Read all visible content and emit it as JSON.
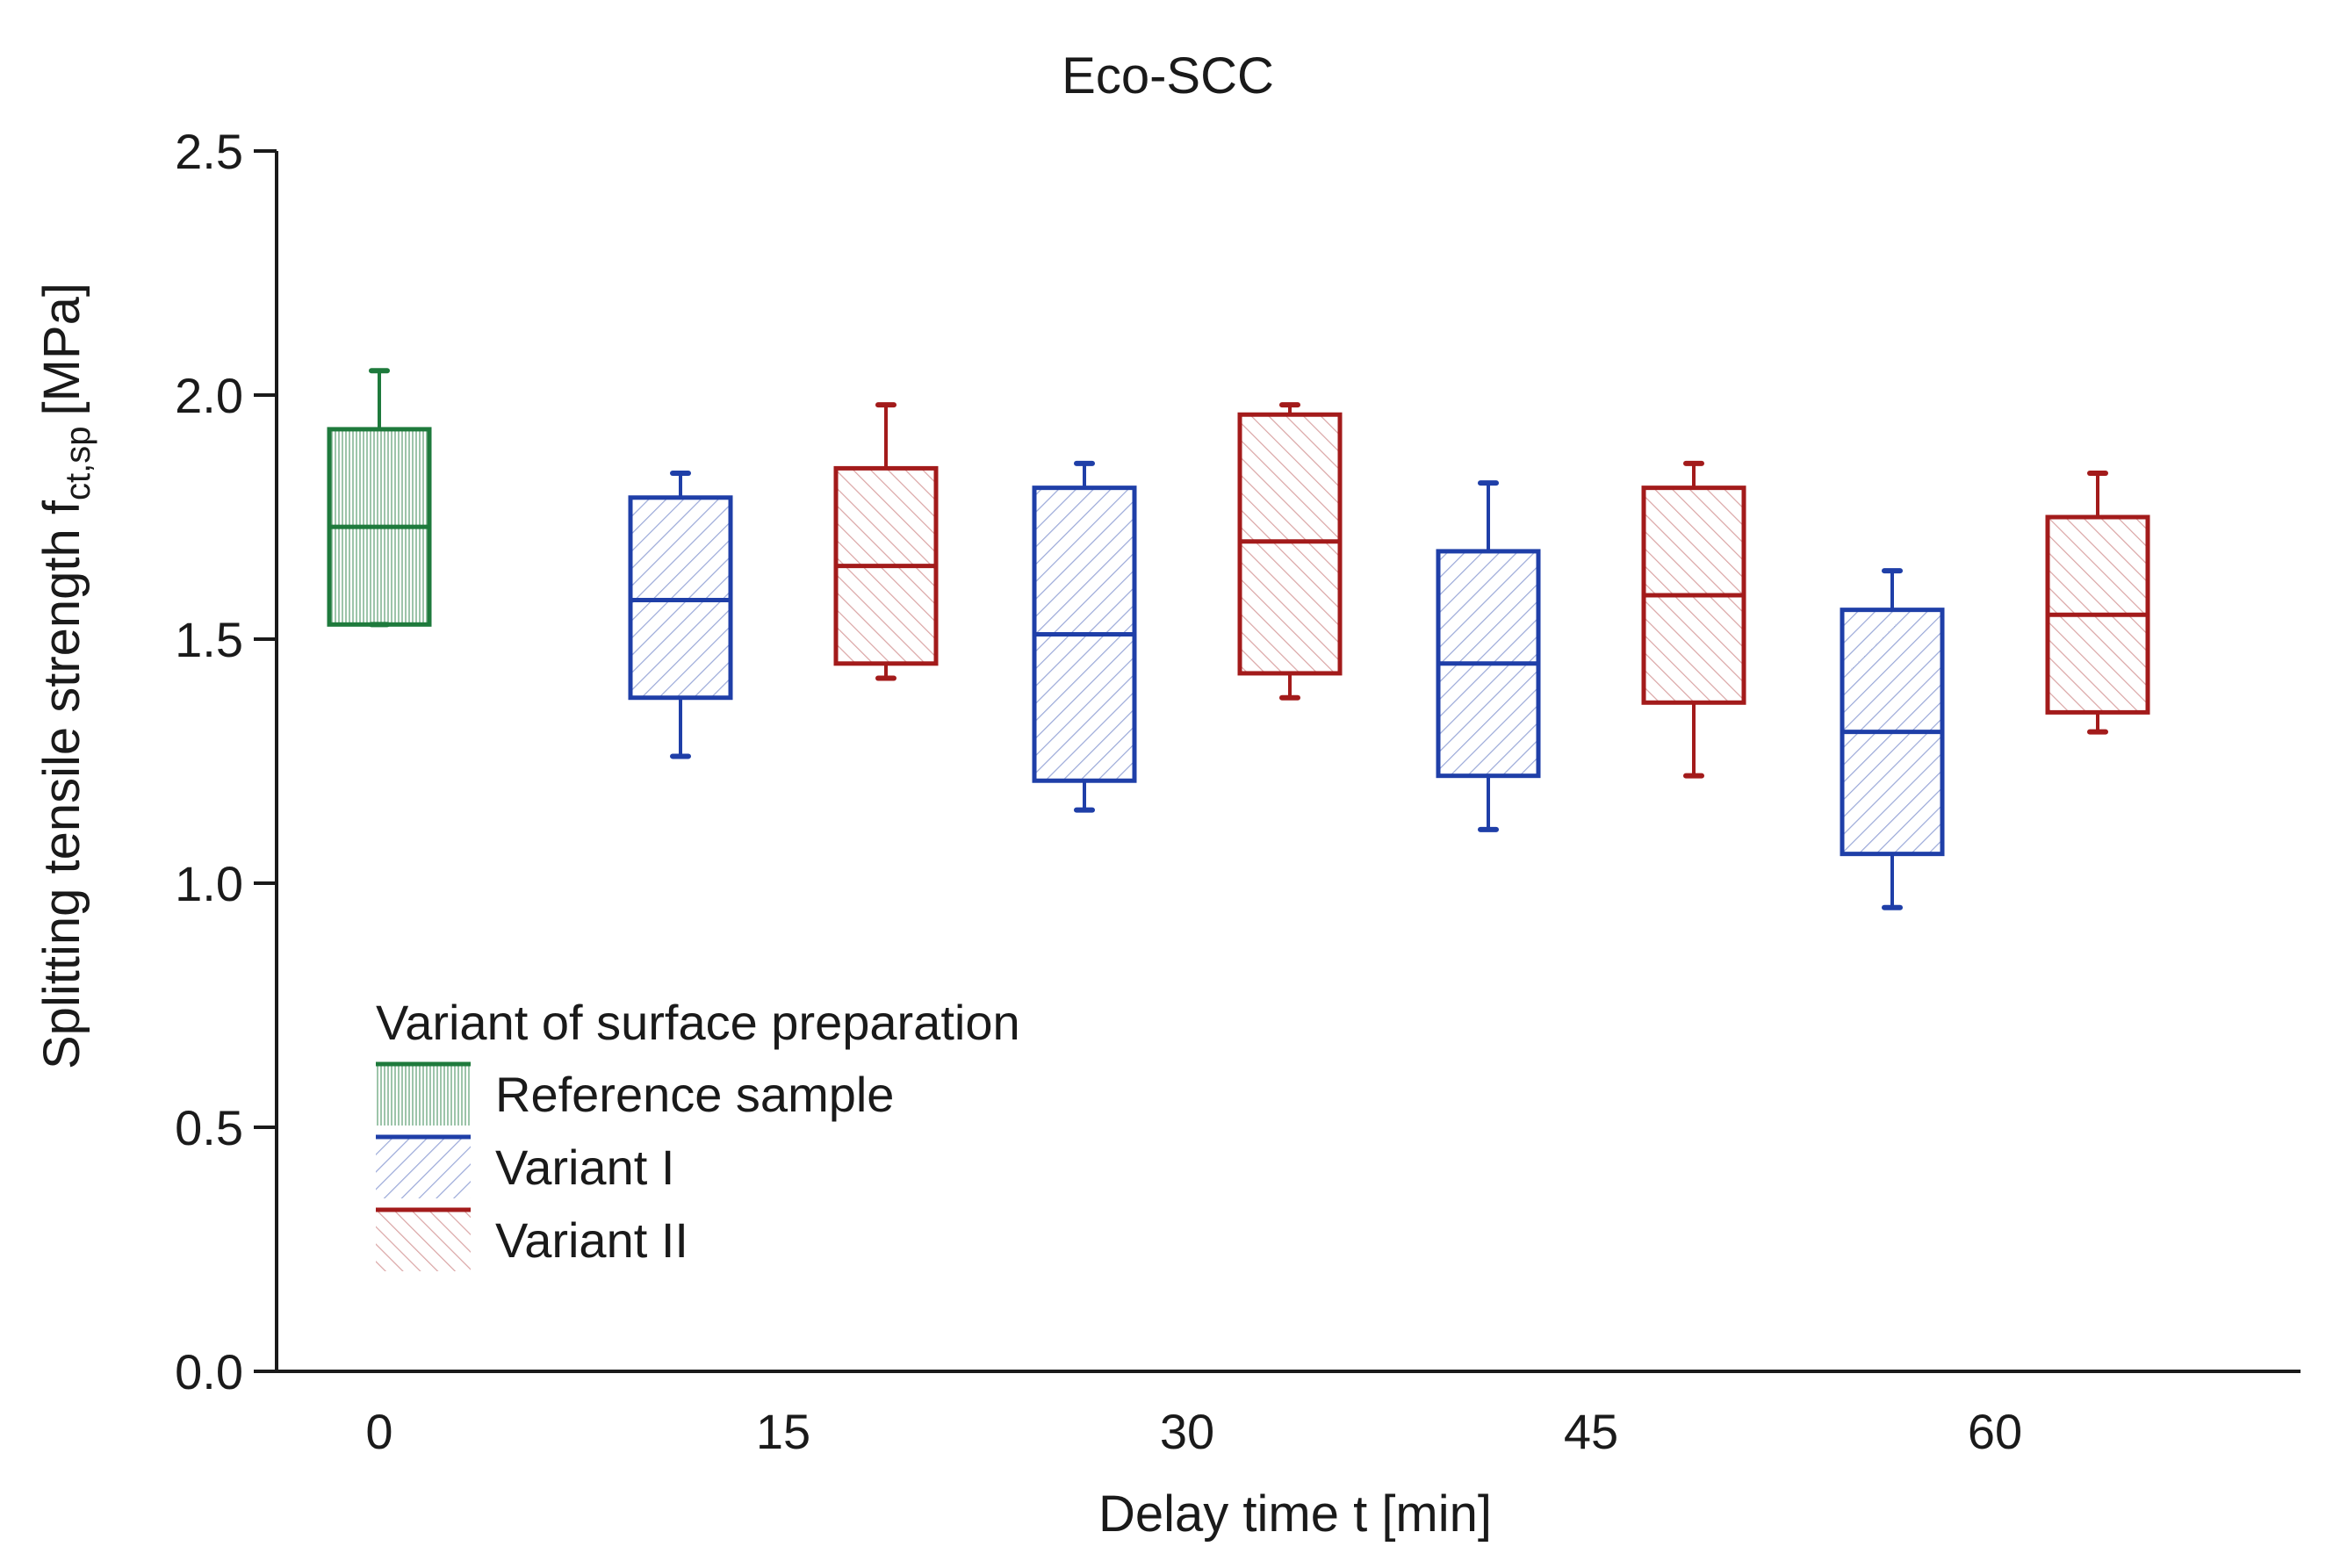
{
  "chart_data": {
    "type": "box",
    "title": "Eco-SCC",
    "xlabel": "Delay time t [min]",
    "ylabel": {
      "main": "Splitting tensile strength f",
      "subscript": "ct,sp",
      "unit": "[MPa]"
    },
    "ylim": [
      0.0,
      2.5
    ],
    "yticks": [
      "0.0",
      "0.5",
      "1.0",
      "1.5",
      "2.0",
      "2.5"
    ],
    "categories": [
      "0",
      "15",
      "30",
      "45",
      "60"
    ],
    "legend": {
      "title": "Variant of surface preparation",
      "position": "lower-left"
    },
    "series": [
      {
        "name": "Reference sample",
        "color": "#1e7a3c",
        "pattern": "vertical",
        "boxes": [
          {
            "category": "0",
            "whisker_low": 1.53,
            "q1": 1.53,
            "median": 1.73,
            "q3": 1.93,
            "whisker_high": 2.05
          }
        ]
      },
      {
        "name": "Variant I",
        "color": "#1f3fa8",
        "pattern": "diagonal-up",
        "boxes": [
          {
            "category": "15",
            "whisker_low": 1.26,
            "q1": 1.38,
            "median": 1.58,
            "q3": 1.79,
            "whisker_high": 1.84
          },
          {
            "category": "30",
            "whisker_low": 1.15,
            "q1": 1.21,
            "median": 1.51,
            "q3": 1.81,
            "whisker_high": 1.86
          },
          {
            "category": "45",
            "whisker_low": 1.11,
            "q1": 1.22,
            "median": 1.45,
            "q3": 1.68,
            "whisker_high": 1.82
          },
          {
            "category": "60",
            "whisker_low": 0.95,
            "q1": 1.06,
            "median": 1.31,
            "q3": 1.56,
            "whisker_high": 1.64
          }
        ]
      },
      {
        "name": "Variant II",
        "color": "#a31b1b",
        "pattern": "diagonal-down",
        "boxes": [
          {
            "category": "15",
            "whisker_low": 1.42,
            "q1": 1.45,
            "median": 1.65,
            "q3": 1.85,
            "whisker_high": 1.98
          },
          {
            "category": "30",
            "whisker_low": 1.38,
            "q1": 1.43,
            "median": 1.7,
            "q3": 1.96,
            "whisker_high": 1.98
          },
          {
            "category": "45",
            "whisker_low": 1.22,
            "q1": 1.37,
            "median": 1.59,
            "q3": 1.81,
            "whisker_high": 1.86
          },
          {
            "category": "60",
            "whisker_low": 1.31,
            "q1": 1.35,
            "median": 1.55,
            "q3": 1.75,
            "whisker_high": 1.84
          }
        ]
      }
    ]
  }
}
